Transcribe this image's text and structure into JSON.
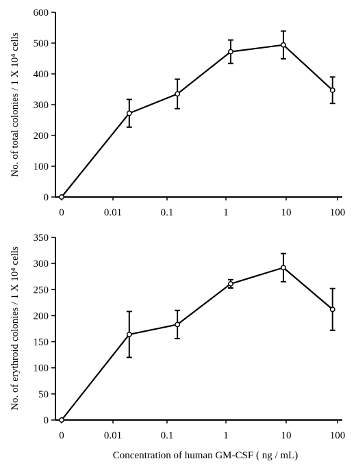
{
  "figure": {
    "xlabel": "Concentration of human GM-CSF ( ng / mL)"
  },
  "chart_data": [
    {
      "type": "line",
      "title": "",
      "xlabel": "",
      "ylabel": "No. of total colonies / 1 X 10⁴ cells",
      "x_ticks": [
        "0",
        "0.01",
        "0.1",
        "1",
        "10",
        "100"
      ],
      "ylim": [
        0,
        600
      ],
      "y_ticks": [
        0,
        100,
        200,
        300,
        400,
        500,
        600
      ],
      "grid": false,
      "series": [
        {
          "x": [
            0,
            0.02,
            0.15,
            1.2,
            9,
            80
          ],
          "y": [
            0,
            272,
            335,
            472,
            494,
            347
          ],
          "error": [
            0,
            45,
            48,
            38,
            45,
            43
          ]
        }
      ]
    },
    {
      "type": "line",
      "title": "",
      "xlabel": "Concentration of human GM-CSF ( ng / mL)",
      "ylabel": "No. of erythroid colonies / 1 X 10⁴ cells",
      "x_ticks": [
        "0",
        "0.01",
        "0.1",
        "1",
        "10",
        "100"
      ],
      "ylim": [
        0,
        350
      ],
      "y_ticks": [
        0,
        50,
        100,
        150,
        200,
        250,
        300,
        350
      ],
      "grid": false,
      "series": [
        {
          "x": [
            0,
            0.02,
            0.15,
            1.2,
            9,
            80
          ],
          "y": [
            0,
            164,
            183,
            261,
            292,
            212
          ],
          "error": [
            0,
            44,
            27,
            8,
            27,
            40
          ]
        }
      ]
    }
  ]
}
